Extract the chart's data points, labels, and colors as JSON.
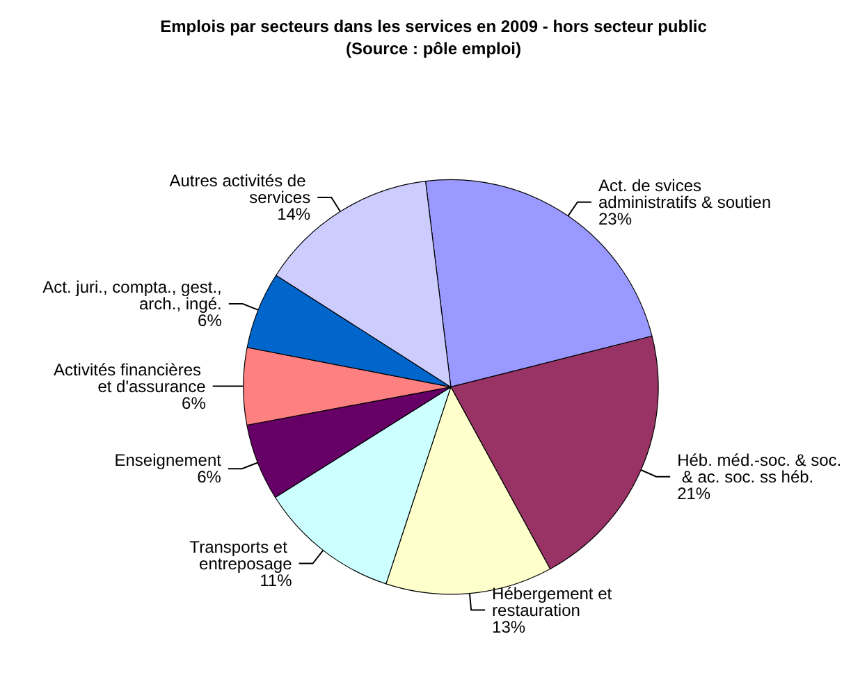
{
  "chart_data": {
    "type": "pie",
    "title": "Emplois par secteurs dans les services en 2009 - hors secteur public",
    "subtitle": "(Source : pôle emploi)",
    "categories": [
      "Act. de svices administratifs & soutien",
      "Héb. méd.-soc. & soc. & ac. soc. ss héb.",
      "Hébergement et restauration",
      "Transports et entreposage",
      "Enseignement",
      "Activités financières et d'assurance",
      "Act. juri., compta., gest., arch., ingé.",
      "Autres activités de services"
    ],
    "values": [
      23,
      21,
      13,
      11,
      6,
      6,
      6,
      14
    ],
    "value_labels": [
      "23%",
      "21%",
      "13%",
      "11%",
      "6%",
      "6%",
      "6%",
      "14%"
    ],
    "colors": [
      "#9999ff",
      "#993366",
      "#ffffcc",
      "#ccffff",
      "#660066",
      "#ff8080",
      "#0066cc",
      "#ccccff"
    ],
    "legend": false
  }
}
